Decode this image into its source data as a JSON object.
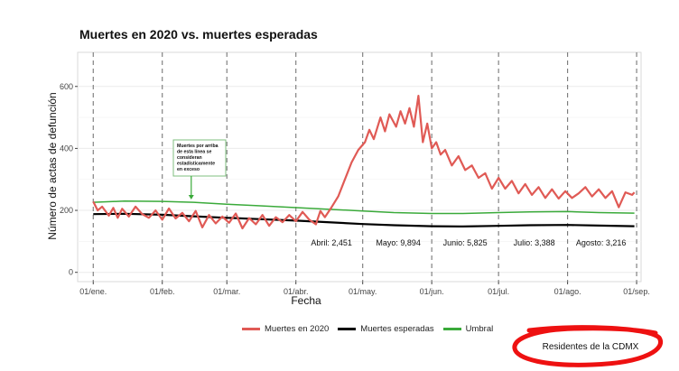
{
  "colors": {
    "observed": "#e05a55",
    "expected": "#000000",
    "threshold": "#3aaa3a",
    "grid": "#ebebeb",
    "dashed_lines": "#777777",
    "annotation_border": "#7fbf7f",
    "stamp_ring": "#ee1111"
  },
  "chart_data": {
    "type": "line",
    "title": "Muertes en 2020 vs. muertes esperadas",
    "xlabel": "Fecha",
    "ylabel": "Número de actas de defunción",
    "xlim": [
      "2019-12-25",
      "2020-09-03"
    ],
    "ylim": [
      -30,
      710
    ],
    "yticks": [
      0,
      200,
      400,
      600
    ],
    "xticks": [
      {
        "date": "2020-01-01",
        "label": "01/ene."
      },
      {
        "date": "2020-02-01",
        "label": "01/feb."
      },
      {
        "date": "2020-03-01",
        "label": "01/mar."
      },
      {
        "date": "2020-04-01",
        "label": "01/abr."
      },
      {
        "date": "2020-05-01",
        "label": "01/may."
      },
      {
        "date": "2020-06-01",
        "label": "01/jun."
      },
      {
        "date": "2020-07-01",
        "label": "01/jul."
      },
      {
        "date": "2020-08-01",
        "label": "01/ago."
      },
      {
        "date": "2020-09-01",
        "label": "01/sep."
      }
    ],
    "grid": true,
    "legend_position": "bottom",
    "series": [
      {
        "name": "Muertes en 2020",
        "color": "#e05a55",
        "points": [
          [
            "2020-01-01",
            228
          ],
          [
            "2020-01-03",
            200
          ],
          [
            "2020-01-05",
            212
          ],
          [
            "2020-01-08",
            183
          ],
          [
            "2020-01-10",
            208
          ],
          [
            "2020-01-12",
            176
          ],
          [
            "2020-01-14",
            205
          ],
          [
            "2020-01-17",
            180
          ],
          [
            "2020-01-20",
            212
          ],
          [
            "2020-01-23",
            188
          ],
          [
            "2020-01-26",
            176
          ],
          [
            "2020-01-29",
            200
          ],
          [
            "2020-02-01",
            170
          ],
          [
            "2020-02-04",
            206
          ],
          [
            "2020-02-07",
            174
          ],
          [
            "2020-02-10",
            192
          ],
          [
            "2020-02-13",
            165
          ],
          [
            "2020-02-16",
            198
          ],
          [
            "2020-02-19",
            145
          ],
          [
            "2020-02-22",
            185
          ],
          [
            "2020-02-25",
            158
          ],
          [
            "2020-02-28",
            180
          ],
          [
            "2020-03-02",
            160
          ],
          [
            "2020-03-05",
            190
          ],
          [
            "2020-03-08",
            142
          ],
          [
            "2020-03-11",
            175
          ],
          [
            "2020-03-14",
            155
          ],
          [
            "2020-03-17",
            185
          ],
          [
            "2020-03-20",
            150
          ],
          [
            "2020-03-23",
            178
          ],
          [
            "2020-03-26",
            162
          ],
          [
            "2020-03-29",
            185
          ],
          [
            "2020-04-01",
            165
          ],
          [
            "2020-04-04",
            195
          ],
          [
            "2020-04-07",
            170
          ],
          [
            "2020-04-10",
            155
          ],
          [
            "2020-04-12",
            198
          ],
          [
            "2020-04-14",
            178
          ],
          [
            "2020-04-17",
            210
          ],
          [
            "2020-04-20",
            245
          ],
          [
            "2020-04-23",
            300
          ],
          [
            "2020-04-26",
            355
          ],
          [
            "2020-04-29",
            395
          ],
          [
            "2020-05-02",
            420
          ],
          [
            "2020-05-04",
            460
          ],
          [
            "2020-05-06",
            430
          ],
          [
            "2020-05-09",
            500
          ],
          [
            "2020-05-11",
            455
          ],
          [
            "2020-05-13",
            510
          ],
          [
            "2020-05-16",
            470
          ],
          [
            "2020-05-18",
            520
          ],
          [
            "2020-05-20",
            480
          ],
          [
            "2020-05-22",
            530
          ],
          [
            "2020-05-24",
            470
          ],
          [
            "2020-05-26",
            570
          ],
          [
            "2020-05-28",
            420
          ],
          [
            "2020-05-30",
            480
          ],
          [
            "2020-06-01",
            400
          ],
          [
            "2020-06-03",
            420
          ],
          [
            "2020-06-05",
            380
          ],
          [
            "2020-06-07",
            395
          ],
          [
            "2020-06-10",
            345
          ],
          [
            "2020-06-13",
            375
          ],
          [
            "2020-06-16",
            330
          ],
          [
            "2020-06-19",
            345
          ],
          [
            "2020-06-22",
            305
          ],
          [
            "2020-06-25",
            320
          ],
          [
            "2020-06-28",
            270
          ],
          [
            "2020-07-01",
            305
          ],
          [
            "2020-07-04",
            270
          ],
          [
            "2020-07-07",
            295
          ],
          [
            "2020-07-10",
            255
          ],
          [
            "2020-07-13",
            285
          ],
          [
            "2020-07-16",
            250
          ],
          [
            "2020-07-19",
            275
          ],
          [
            "2020-07-22",
            240
          ],
          [
            "2020-07-25",
            268
          ],
          [
            "2020-07-28",
            238
          ],
          [
            "2020-07-31",
            262
          ],
          [
            "2020-08-03",
            240
          ],
          [
            "2020-08-06",
            255
          ],
          [
            "2020-08-09",
            275
          ],
          [
            "2020-08-12",
            245
          ],
          [
            "2020-08-15",
            268
          ],
          [
            "2020-08-18",
            240
          ],
          [
            "2020-08-21",
            262
          ],
          [
            "2020-08-24",
            210
          ],
          [
            "2020-08-27",
            258
          ],
          [
            "2020-08-30",
            250
          ],
          [
            "2020-08-31",
            258
          ]
        ]
      },
      {
        "name": "Muertes esperadas",
        "color": "#000000",
        "points": [
          [
            "2020-01-01",
            188
          ],
          [
            "2020-01-15",
            189
          ],
          [
            "2020-02-01",
            186
          ],
          [
            "2020-02-15",
            181
          ],
          [
            "2020-03-01",
            176
          ],
          [
            "2020-03-15",
            172
          ],
          [
            "2020-04-01",
            167
          ],
          [
            "2020-04-15",
            162
          ],
          [
            "2020-05-01",
            156
          ],
          [
            "2020-05-15",
            152
          ],
          [
            "2020-06-01",
            149
          ],
          [
            "2020-06-15",
            148
          ],
          [
            "2020-07-01",
            150
          ],
          [
            "2020-07-15",
            152
          ],
          [
            "2020-08-01",
            153
          ],
          [
            "2020-08-15",
            151
          ],
          [
            "2020-08-31",
            149
          ]
        ]
      },
      {
        "name": "Umbral",
        "color": "#3aaa3a",
        "points": [
          [
            "2020-01-01",
            226
          ],
          [
            "2020-01-15",
            230
          ],
          [
            "2020-02-01",
            229
          ],
          [
            "2020-02-15",
            226
          ],
          [
            "2020-03-01",
            220
          ],
          [
            "2020-03-15",
            215
          ],
          [
            "2020-04-01",
            209
          ],
          [
            "2020-04-15",
            204
          ],
          [
            "2020-05-01",
            198
          ],
          [
            "2020-05-15",
            193
          ],
          [
            "2020-06-01",
            190
          ],
          [
            "2020-06-15",
            190
          ],
          [
            "2020-07-01",
            193
          ],
          [
            "2020-07-15",
            195
          ],
          [
            "2020-08-01",
            196
          ],
          [
            "2020-08-15",
            193
          ],
          [
            "2020-08-31",
            191
          ]
        ]
      }
    ],
    "vlines": [
      "2020-01-01",
      "2020-02-01",
      "2020-03-01",
      "2020-04-01",
      "2020-05-01",
      "2020-06-01",
      "2020-07-01",
      "2020-08-01",
      "2020-09-01"
    ],
    "annotations": [
      {
        "text": "Abril: 2,451",
        "date": "2020-04-17",
        "y": 95
      },
      {
        "text": "Mayo: 9,894",
        "date": "2020-05-17",
        "y": 95
      },
      {
        "text": "Junio: 5,825",
        "date": "2020-06-16",
        "y": 95
      },
      {
        "text": "Julio: 3,388",
        "date": "2020-07-17",
        "y": 95
      },
      {
        "text": "Agosto: 3,216",
        "date": "2020-08-16",
        "y": 95
      }
    ],
    "callout": {
      "lines": [
        "Muertes por arriba",
        "de esta línea se",
        "consideran",
        "estadísticamente",
        "en exceso"
      ],
      "arrow_to": {
        "date": "2020-02-14",
        "y": 235
      }
    }
  },
  "footer": {
    "stamp_text": "Residentes de la CDMX"
  }
}
